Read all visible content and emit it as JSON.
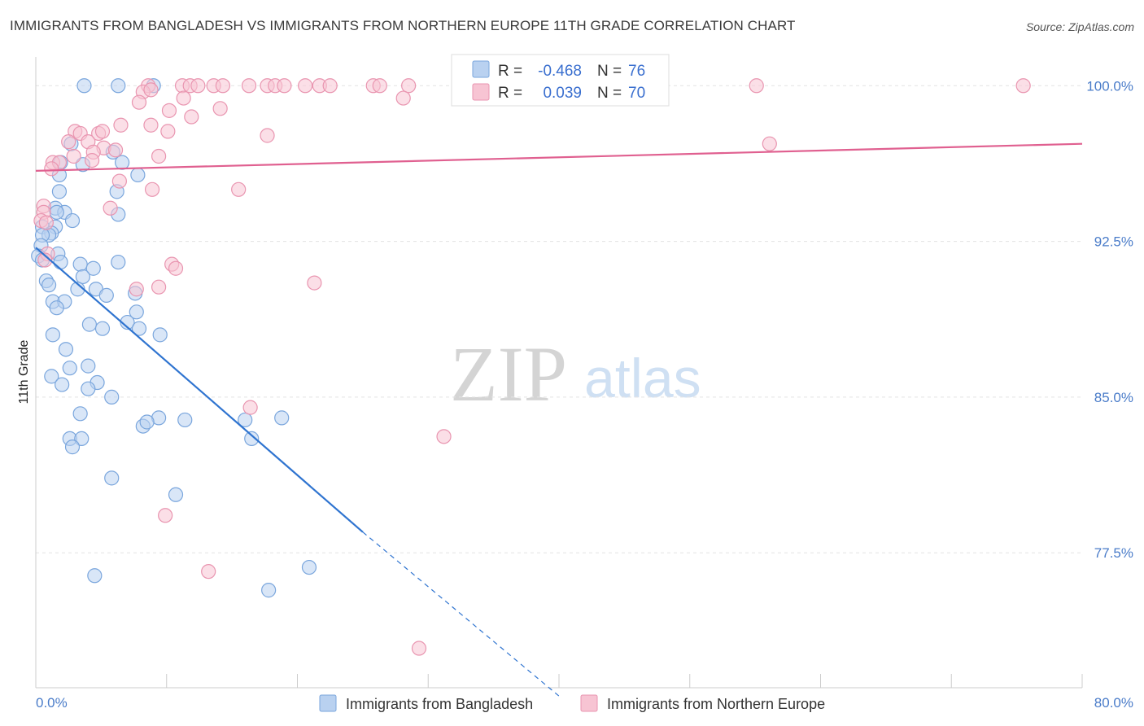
{
  "header": {
    "title": "IMMIGRANTS FROM BANGLADESH VS IMMIGRANTS FROM NORTHERN EUROPE 11TH GRADE CORRELATION CHART",
    "source": "Source: ZipAtlas.com"
  },
  "watermark": {
    "zip": "ZIP",
    "atlas": "atlas"
  },
  "stats_box": {
    "rows": [
      {
        "r_label": "R =",
        "r_value": "-0.468",
        "n_label": "N =",
        "n_value": "76"
      },
      {
        "r_label": "R =",
        "r_value": "0.039",
        "n_label": "N =",
        "n_value": "70"
      }
    ]
  },
  "legend": {
    "items": [
      {
        "label": "Immigrants from Bangladesh"
      },
      {
        "label": "Immigrants from Northern Europe"
      }
    ]
  },
  "colors": {
    "blue_fill": "#b9d1f0",
    "blue_stroke": "#7aa6dd",
    "blue_line": "#2f74d0",
    "pink_fill": "#f7c4d3",
    "pink_stroke": "#e995b0",
    "pink_line": "#e06090",
    "grid": "#e3e3e3",
    "axis_text": "#4a7cc9"
  },
  "chart_data": {
    "type": "scatter",
    "title": "IMMIGRANTS FROM BANGLADESH VS IMMIGRANTS FROM NORTHERN EUROPE 11TH GRADE CORRELATION CHART",
    "xlabel": "",
    "ylabel": "11th Grade",
    "xlim": [
      0,
      80
    ],
    "ylim": [
      71,
      101.5
    ],
    "x_tick_labels": [
      "0.0%",
      "80.0%"
    ],
    "y_ticks": [
      77.5,
      85.0,
      92.5,
      100.0
    ],
    "y_tick_labels": [
      "77.5%",
      "85.0%",
      "92.5%",
      "100.0%"
    ],
    "grid": "horizontal dashed",
    "legend_position": "bottom-center",
    "series": [
      {
        "name": "Immigrants from Bangladesh",
        "R": -0.468,
        "N": 76,
        "trend": {
          "x": [
            0,
            25
          ],
          "y": [
            92.2,
            78.5
          ],
          "dashed_extension": {
            "x": [
              25,
              40
            ],
            "y": [
              78.5,
              70.6
            ]
          }
        },
        "points": [
          [
            3.7,
            100.0
          ],
          [
            6.3,
            100.0
          ],
          [
            9.0,
            100.0
          ],
          [
            2.7,
            97.2
          ],
          [
            5.9,
            96.8
          ],
          [
            1.9,
            96.3
          ],
          [
            3.6,
            96.2
          ],
          [
            6.6,
            96.3
          ],
          [
            1.8,
            95.7
          ],
          [
            7.8,
            95.7
          ],
          [
            1.8,
            94.9
          ],
          [
            6.2,
            94.9
          ],
          [
            1.5,
            94.1
          ],
          [
            2.2,
            93.9
          ],
          [
            6.3,
            93.8
          ],
          [
            1.6,
            93.9
          ],
          [
            2.8,
            93.5
          ],
          [
            0.5,
            93.2
          ],
          [
            1.5,
            93.2
          ],
          [
            1.2,
            92.9
          ],
          [
            1.0,
            92.8
          ],
          [
            0.5,
            92.8
          ],
          [
            0.4,
            92.3
          ],
          [
            0.2,
            91.8
          ],
          [
            0.5,
            91.6
          ],
          [
            1.7,
            91.9
          ],
          [
            1.9,
            91.5
          ],
          [
            3.4,
            91.4
          ],
          [
            4.4,
            91.2
          ],
          [
            6.3,
            91.5
          ],
          [
            3.6,
            90.8
          ],
          [
            0.8,
            90.6
          ],
          [
            1.0,
            90.4
          ],
          [
            3.2,
            90.2
          ],
          [
            4.6,
            90.2
          ],
          [
            5.4,
            89.9
          ],
          [
            7.6,
            90.0
          ],
          [
            1.3,
            89.6
          ],
          [
            2.2,
            89.6
          ],
          [
            1.6,
            89.3
          ],
          [
            7.7,
            89.1
          ],
          [
            4.1,
            88.5
          ],
          [
            5.1,
            88.3
          ],
          [
            7.0,
            88.6
          ],
          [
            7.9,
            88.3
          ],
          [
            9.5,
            88.0
          ],
          [
            1.3,
            88.0
          ],
          [
            2.3,
            87.3
          ],
          [
            2.6,
            86.4
          ],
          [
            4.0,
            86.5
          ],
          [
            1.2,
            86.0
          ],
          [
            4.7,
            85.7
          ],
          [
            2.0,
            85.6
          ],
          [
            4.0,
            85.4
          ],
          [
            5.8,
            85.0
          ],
          [
            3.4,
            84.2
          ],
          [
            9.4,
            84.0
          ],
          [
            11.4,
            83.9
          ],
          [
            16.0,
            83.9
          ],
          [
            18.8,
            84.0
          ],
          [
            8.2,
            83.6
          ],
          [
            8.5,
            83.8
          ],
          [
            2.6,
            83.0
          ],
          [
            3.5,
            83.0
          ],
          [
            2.8,
            82.6
          ],
          [
            16.5,
            83.0
          ],
          [
            5.8,
            81.1
          ],
          [
            10.7,
            80.3
          ],
          [
            4.5,
            76.4
          ],
          [
            20.9,
            76.8
          ],
          [
            17.8,
            75.7
          ]
        ]
      },
      {
        "name": "Immigrants from Northern Europe",
        "R": 0.039,
        "N": 70,
        "trend": {
          "x": [
            0,
            80
          ],
          "y": [
            95.9,
            97.2
          ]
        },
        "points": [
          [
            8.6,
            100.0
          ],
          [
            11.2,
            100.0
          ],
          [
            11.8,
            100.0
          ],
          [
            12.4,
            100.0
          ],
          [
            13.6,
            100.0
          ],
          [
            14.3,
            100.0
          ],
          [
            16.3,
            100.0
          ],
          [
            17.7,
            100.0
          ],
          [
            18.3,
            100.0
          ],
          [
            19.0,
            100.0
          ],
          [
            20.6,
            100.0
          ],
          [
            21.7,
            100.0
          ],
          [
            22.5,
            100.0
          ],
          [
            25.8,
            100.0
          ],
          [
            26.3,
            100.0
          ],
          [
            28.5,
            100.0
          ],
          [
            34.3,
            100.0
          ],
          [
            55.1,
            100.0
          ],
          [
            75.5,
            100.0
          ],
          [
            8.2,
            99.7
          ],
          [
            8.8,
            99.8
          ],
          [
            7.9,
            99.2
          ],
          [
            11.3,
            99.4
          ],
          [
            28.1,
            99.4
          ],
          [
            10.2,
            98.8
          ],
          [
            11.9,
            98.5
          ],
          [
            14.1,
            98.9
          ],
          [
            6.5,
            98.1
          ],
          [
            8.8,
            98.1
          ],
          [
            3.0,
            97.8
          ],
          [
            3.4,
            97.7
          ],
          [
            4.8,
            97.7
          ],
          [
            5.1,
            97.8
          ],
          [
            10.1,
            97.8
          ],
          [
            17.7,
            97.6
          ],
          [
            2.5,
            97.3
          ],
          [
            4.0,
            97.3
          ],
          [
            5.2,
            97.0
          ],
          [
            56.1,
            97.2
          ],
          [
            6.1,
            96.9
          ],
          [
            2.9,
            96.6
          ],
          [
            4.4,
            96.8
          ],
          [
            9.4,
            96.6
          ],
          [
            1.3,
            96.3
          ],
          [
            1.8,
            96.3
          ],
          [
            4.3,
            96.4
          ],
          [
            1.2,
            96.0
          ],
          [
            6.4,
            95.4
          ],
          [
            8.9,
            95.0
          ],
          [
            15.5,
            95.0
          ],
          [
            0.6,
            94.2
          ],
          [
            5.7,
            94.1
          ],
          [
            0.6,
            93.9
          ],
          [
            0.4,
            93.5
          ],
          [
            0.8,
            93.4
          ],
          [
            0.9,
            91.9
          ],
          [
            0.7,
            91.6
          ],
          [
            10.4,
            91.4
          ],
          [
            10.7,
            91.2
          ],
          [
            9.4,
            90.3
          ],
          [
            7.7,
            90.2
          ],
          [
            21.3,
            90.5
          ],
          [
            16.4,
            84.5
          ],
          [
            31.2,
            83.1
          ],
          [
            9.9,
            79.3
          ],
          [
            13.2,
            76.6
          ],
          [
            29.3,
            72.9
          ]
        ]
      }
    ]
  }
}
